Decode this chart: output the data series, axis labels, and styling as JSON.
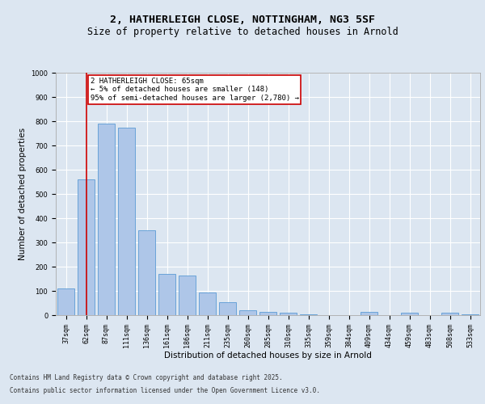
{
  "title_line1": "2, HATHERLEIGH CLOSE, NOTTINGHAM, NG3 5SF",
  "title_line2": "Size of property relative to detached houses in Arnold",
  "xlabel": "Distribution of detached houses by size in Arnold",
  "ylabel": "Number of detached properties",
  "categories": [
    "37sqm",
    "62sqm",
    "87sqm",
    "111sqm",
    "136sqm",
    "161sqm",
    "186sqm",
    "211sqm",
    "235sqm",
    "260sqm",
    "285sqm",
    "310sqm",
    "335sqm",
    "359sqm",
    "384sqm",
    "409sqm",
    "434sqm",
    "459sqm",
    "483sqm",
    "508sqm",
    "533sqm"
  ],
  "values": [
    110,
    560,
    790,
    775,
    350,
    170,
    165,
    95,
    55,
    20,
    15,
    10,
    5,
    0,
    0,
    15,
    0,
    10,
    0,
    10,
    5
  ],
  "bar_color": "#aec6e8",
  "bar_edge_color": "#5b9bd5",
  "vline_x": 1,
  "vline_color": "#cc0000",
  "annotation_text": "2 HATHERLEIGH CLOSE: 65sqm\n← 5% of detached houses are smaller (148)\n95% of semi-detached houses are larger (2,780) →",
  "annotation_box_color": "#ffffff",
  "annotation_box_edge_color": "#cc0000",
  "ylim": [
    0,
    1000
  ],
  "yticks": [
    0,
    100,
    200,
    300,
    400,
    500,
    600,
    700,
    800,
    900,
    1000
  ],
  "background_color": "#dce6f1",
  "plot_bg_color": "#dce6f1",
  "grid_color": "#ffffff",
  "footer_line1": "Contains HM Land Registry data © Crown copyright and database right 2025.",
  "footer_line2": "Contains public sector information licensed under the Open Government Licence v3.0.",
  "title_fontsize": 9.5,
  "subtitle_fontsize": 8.5,
  "tick_fontsize": 6,
  "label_fontsize": 7.5,
  "annotation_fontsize": 6.5,
  "footer_fontsize": 5.5
}
